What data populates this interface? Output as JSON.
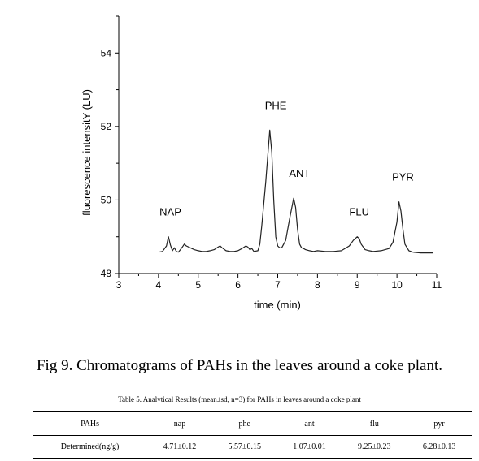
{
  "figure": {
    "caption": "Fig 9. Chromatograms of PAHs in the leaves around a coke plant."
  },
  "chart_data": {
    "type": "line",
    "xlabel": "time (min)",
    "ylabel": "fluorescence intensitY (LU)",
    "xlim": [
      3,
      11
    ],
    "ylim": [
      48,
      55
    ],
    "xticks": [
      3,
      4,
      5,
      6,
      7,
      8,
      9,
      10,
      11
    ],
    "yticks": [
      48,
      50,
      52,
      54
    ],
    "grid": false,
    "series": [
      {
        "color": "#222222",
        "x": [
          4.0,
          4.1,
          4.2,
          4.25,
          4.3,
          4.35,
          4.4,
          4.45,
          4.5,
          4.55,
          4.6,
          4.65,
          4.7,
          4.8,
          4.9,
          5.0,
          5.1,
          5.2,
          5.3,
          5.4,
          5.5,
          5.55,
          5.6,
          5.7,
          5.8,
          5.9,
          6.0,
          6.1,
          6.2,
          6.25,
          6.3,
          6.35,
          6.4,
          6.5,
          6.55,
          6.6,
          6.7,
          6.8,
          6.85,
          6.9,
          6.95,
          7.0,
          7.05,
          7.1,
          7.2,
          7.3,
          7.4,
          7.45,
          7.5,
          7.55,
          7.6,
          7.65,
          7.7,
          7.8,
          7.9,
          8.0,
          8.2,
          8.4,
          8.6,
          8.8,
          8.9,
          9.0,
          9.05,
          9.1,
          9.2,
          9.3,
          9.4,
          9.6,
          9.8,
          9.9,
          10.0,
          10.05,
          10.1,
          10.15,
          10.2,
          10.3,
          10.4,
          10.6,
          10.8,
          10.9
        ],
        "y": [
          48.58,
          48.6,
          48.75,
          49.0,
          48.78,
          48.62,
          48.7,
          48.6,
          48.58,
          48.65,
          48.72,
          48.8,
          48.75,
          48.7,
          48.65,
          48.62,
          48.6,
          48.6,
          48.62,
          48.65,
          48.72,
          48.75,
          48.7,
          48.62,
          48.6,
          48.6,
          48.62,
          48.68,
          48.75,
          48.72,
          48.65,
          48.68,
          48.6,
          48.62,
          48.8,
          49.3,
          50.5,
          51.9,
          51.3,
          50.0,
          49.0,
          48.75,
          48.7,
          48.7,
          48.9,
          49.5,
          50.05,
          49.8,
          49.2,
          48.8,
          48.7,
          48.68,
          48.65,
          48.62,
          48.6,
          48.62,
          48.6,
          48.6,
          48.62,
          48.75,
          48.9,
          49.0,
          48.95,
          48.8,
          48.65,
          48.62,
          48.6,
          48.62,
          48.68,
          48.85,
          49.4,
          49.95,
          49.7,
          49.2,
          48.8,
          48.62,
          48.58,
          48.56,
          48.56,
          48.56
        ]
      }
    ],
    "annotations": [
      {
        "text": "NAP",
        "x": 4.3,
        "y": 49.0
      },
      {
        "text": "PHE",
        "x": 6.95,
        "y": 51.9
      },
      {
        "text": "ANT",
        "x": 7.55,
        "y": 50.05
      },
      {
        "text": "FLU",
        "x": 9.05,
        "y": 49.0
      },
      {
        "text": "PYR",
        "x": 10.15,
        "y": 49.95
      }
    ]
  },
  "table": {
    "caption": "Table 5. Analytical Results (mean±sd, n=3) for PAHs in leaves around a coke plant",
    "headers": [
      "PAHs",
      "nap",
      "phe",
      "ant",
      "flu",
      "pyr"
    ],
    "row": [
      "Determined(ng/g)",
      "4.71±0.12",
      "5.57±0.15",
      "1.07±0.01",
      "9.25±0.23",
      "6.28±0.13"
    ]
  }
}
